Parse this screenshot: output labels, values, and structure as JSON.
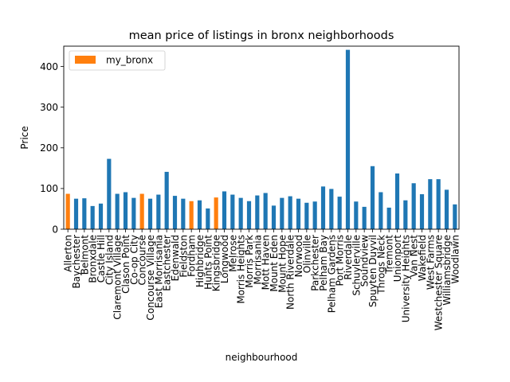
{
  "chart_data": {
    "type": "bar",
    "title": "mean price of listings in bronx neighborhoods",
    "xlabel": "neighbourhood",
    "ylabel": "Price",
    "ylim": [
      0,
      450
    ],
    "yticks": [
      0,
      100,
      200,
      300,
      400
    ],
    "grid": false,
    "legend": {
      "position": "top-left",
      "label": "my_bronx",
      "color": "#ff7f0e"
    },
    "colors": {
      "default": "#1f77b4",
      "highlight": "#ff7f0e"
    },
    "categories": [
      "Allerton",
      "Baychester",
      "Belmont",
      "Bronxdale",
      "Castle Hill",
      "City Island",
      "Claremont Village",
      "Clason Point",
      "Co-op City",
      "Concourse",
      "Concourse Village",
      "East Morrisania",
      "Eastchester",
      "Edenwald",
      "Fieldston",
      "Fordham",
      "Highbridge",
      "Hunts Point",
      "Kingsbridge",
      "Longwood",
      "Melrose",
      "Morris Heights",
      "Morris Park",
      "Morrisania",
      "Mott Haven",
      "Mount Eden",
      "Mount Hope",
      "North Riverdale",
      "Norwood",
      "Olinville",
      "Parkchester",
      "Pelham Bay",
      "Pelham Gardens",
      "Port Morris",
      "Riverdale",
      "Schuylerville",
      "Soundview",
      "Spuyten Duyvil",
      "Throgs Neck",
      "Tremont",
      "Unionport",
      "University Heights",
      "Van Nest",
      "Wakefield",
      "West Farms",
      "Westchester Square",
      "Williamsbridge",
      "Woodlawn"
    ],
    "values": [
      87,
      75,
      76,
      57,
      63,
      173,
      87,
      91,
      77,
      87,
      75,
      85,
      141,
      82,
      75,
      69,
      71,
      51,
      78,
      93,
      85,
      77,
      69,
      83,
      89,
      58,
      77,
      81,
      75,
      65,
      68,
      105,
      99,
      80,
      441,
      68,
      55,
      155,
      91,
      53,
      137,
      71,
      113,
      86,
      123,
      123,
      97,
      61
    ],
    "highlighted": [
      "Allerton",
      "Concourse",
      "Fordham",
      "Kingsbridge"
    ]
  }
}
